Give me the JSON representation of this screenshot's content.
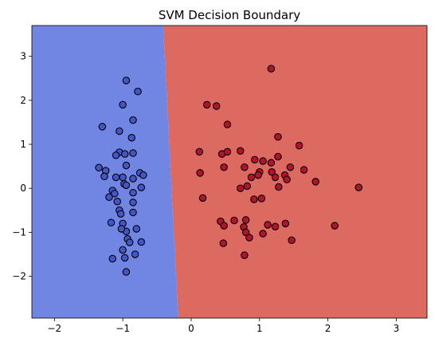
{
  "chart_data": {
    "type": "scatter",
    "title": "SVM Decision Boundary",
    "xlabel": "",
    "ylabel": "",
    "xlim": [
      -2.33,
      3.45
    ],
    "ylim": [
      -2.95,
      3.7
    ],
    "x_ticks": [
      -2,
      -1,
      0,
      1,
      2,
      3
    ],
    "y_ticks": [
      -2,
      -1,
      0,
      1,
      2,
      3
    ],
    "grid": false,
    "decision_boundary": {
      "points": [
        [
          -0.41,
          3.7
        ],
        [
          -0.19,
          -2.95
        ]
      ]
    },
    "regions": {
      "left_color": "#7185e3",
      "right_color": "#dc6a60"
    },
    "series": [
      {
        "marker_color": "#4256c8",
        "points": [
          [
            -0.95,
            2.45
          ],
          [
            -0.78,
            2.2
          ],
          [
            -1.0,
            1.9
          ],
          [
            -0.85,
            1.55
          ],
          [
            -1.3,
            1.4
          ],
          [
            -1.05,
            1.3
          ],
          [
            -0.87,
            1.15
          ],
          [
            -1.05,
            0.82
          ],
          [
            -1.1,
            0.75
          ],
          [
            -0.97,
            0.78
          ],
          [
            -0.85,
            0.8
          ],
          [
            -1.25,
            0.4
          ],
          [
            -0.95,
            0.52
          ],
          [
            -1.35,
            0.47
          ],
          [
            -1.27,
            0.27
          ],
          [
            -1.1,
            0.25
          ],
          [
            -1.0,
            0.25
          ],
          [
            -0.85,
            0.22
          ],
          [
            -0.75,
            0.35
          ],
          [
            -0.7,
            0.3
          ],
          [
            -0.98,
            0.1
          ],
          [
            -0.95,
            0.07
          ],
          [
            -0.73,
            0.02
          ],
          [
            -1.15,
            -0.05
          ],
          [
            -1.12,
            -0.12
          ],
          [
            -1.2,
            -0.2
          ],
          [
            -0.85,
            -0.1
          ],
          [
            -1.08,
            -0.3
          ],
          [
            -0.85,
            -0.32
          ],
          [
            -1.05,
            -0.5
          ],
          [
            -1.03,
            -0.58
          ],
          [
            -0.85,
            -0.55
          ],
          [
            -1.17,
            -0.78
          ],
          [
            -1.0,
            -0.8
          ],
          [
            -0.95,
            -0.98
          ],
          [
            -1.02,
            -0.92
          ],
          [
            -0.93,
            -1.15
          ],
          [
            -0.8,
            -0.92
          ],
          [
            -0.9,
            -1.23
          ],
          [
            -0.73,
            -1.22
          ],
          [
            -1.0,
            -1.4
          ],
          [
            -0.82,
            -1.5
          ],
          [
            -0.97,
            -1.58
          ],
          [
            -1.15,
            -1.6
          ],
          [
            -0.95,
            -1.9
          ]
        ]
      },
      {
        "marker_color": "#b1132a",
        "points": [
          [
            1.17,
            2.72
          ],
          [
            0.23,
            1.9
          ],
          [
            0.37,
            1.87
          ],
          [
            0.53,
            1.45
          ],
          [
            1.27,
            1.17
          ],
          [
            1.58,
            0.97
          ],
          [
            0.12,
            0.83
          ],
          [
            0.45,
            0.78
          ],
          [
            0.53,
            0.83
          ],
          [
            0.72,
            0.85
          ],
          [
            0.93,
            0.65
          ],
          [
            1.05,
            0.62
          ],
          [
            1.17,
            0.58
          ],
          [
            1.27,
            0.72
          ],
          [
            1.65,
            0.42
          ],
          [
            0.13,
            0.35
          ],
          [
            0.48,
            0.48
          ],
          [
            0.78,
            0.48
          ],
          [
            1.0,
            0.37
          ],
          [
            1.18,
            0.37
          ],
          [
            1.45,
            0.48
          ],
          [
            0.88,
            0.25
          ],
          [
            0.98,
            0.3
          ],
          [
            1.23,
            0.25
          ],
          [
            1.37,
            0.3
          ],
          [
            1.4,
            0.2
          ],
          [
            1.82,
            0.15
          ],
          [
            1.28,
            0.03
          ],
          [
            2.45,
            0.02
          ],
          [
            0.82,
            0.05
          ],
          [
            0.72,
            0.0
          ],
          [
            0.17,
            -0.22
          ],
          [
            0.92,
            -0.25
          ],
          [
            1.03,
            -0.23
          ],
          [
            0.63,
            -0.73
          ],
          [
            0.8,
            -0.72
          ],
          [
            0.43,
            -0.75
          ],
          [
            0.48,
            -0.85
          ],
          [
            0.77,
            -0.88
          ],
          [
            1.12,
            -0.83
          ],
          [
            1.23,
            -0.87
          ],
          [
            1.38,
            -0.8
          ],
          [
            2.1,
            -0.85
          ],
          [
            0.8,
            -1.0
          ],
          [
            0.85,
            -1.12
          ],
          [
            1.05,
            -1.03
          ],
          [
            1.47,
            -1.18
          ],
          [
            0.47,
            -1.25
          ],
          [
            0.78,
            -1.52
          ]
        ]
      }
    ]
  }
}
